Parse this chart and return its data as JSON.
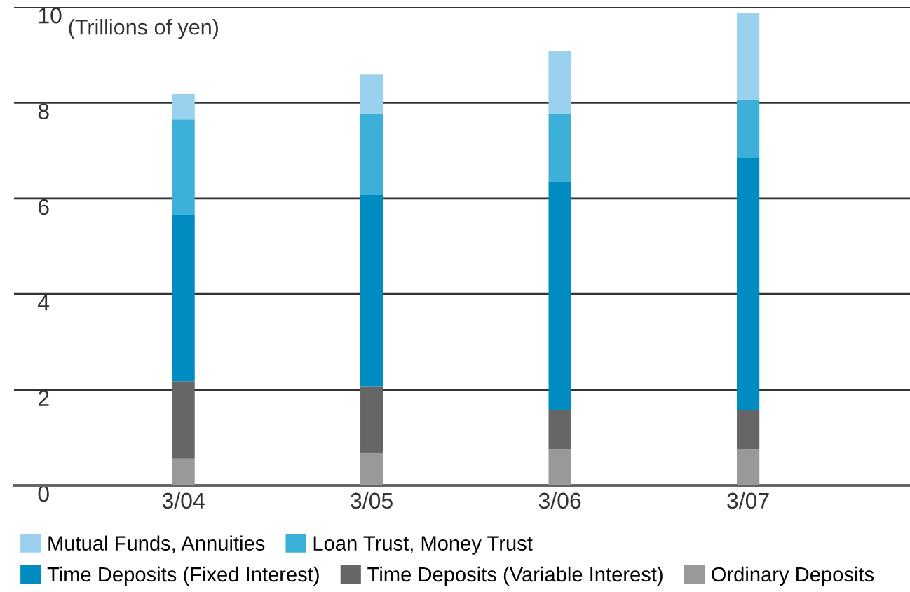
{
  "chart_data": {
    "type": "bar",
    "stacked": true,
    "ylabel": "(Trillions of yen)",
    "categories": [
      "3/04",
      "3/05",
      "3/06",
      "3/07"
    ],
    "series": [
      {
        "name": "Ordinary Deposits",
        "color": "#999999",
        "values": [
          0.56,
          0.67,
          0.76,
          0.76
        ]
      },
      {
        "name": "Time Deposits (Variable Interest)",
        "color": "#666666",
        "values": [
          1.62,
          1.39,
          0.82,
          0.82
        ]
      },
      {
        "name": "Time Deposits (Fixed Interest)",
        "color": "#008cc1",
        "values": [
          3.48,
          4.01,
          4.78,
          5.28
        ]
      },
      {
        "name": "Loan Trust, Money Trust",
        "color": "#3cb0d8",
        "values": [
          1.99,
          1.7,
          1.41,
          1.2
        ]
      },
      {
        "name": "Mutual Funds, Annuities",
        "color": "#99d1ee",
        "values": [
          0.53,
          0.82,
          1.32,
          1.82
        ]
      }
    ],
    "ylim": [
      0,
      10
    ],
    "yticks": [
      0,
      2,
      4,
      6,
      8,
      10
    ],
    "grid": "y",
    "legend": "bottom"
  }
}
